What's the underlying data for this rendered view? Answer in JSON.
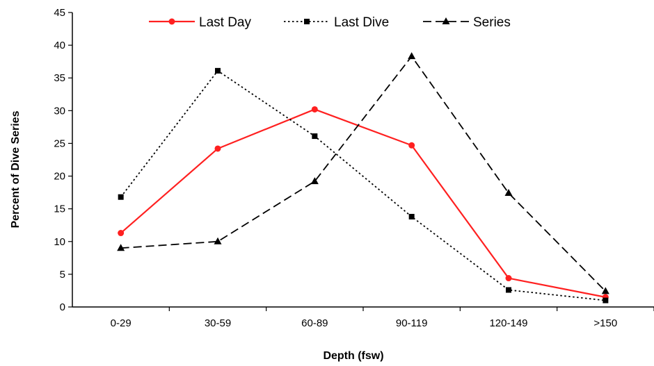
{
  "chart_data": {
    "type": "line",
    "categories": [
      "0-29",
      "30-59",
      "60-89",
      "90-119",
      "120-149",
      ">150"
    ],
    "xlabel": "Depth (fsw)",
    "ylabel": "Percent of Dive Series",
    "ylim": [
      0,
      45
    ],
    "yticks": [
      0,
      5,
      10,
      15,
      20,
      25,
      30,
      35,
      40,
      45
    ],
    "grid": false,
    "legend_position": "top",
    "series": [
      {
        "name": "Last Day",
        "values": [
          11.3,
          24.2,
          30.2,
          24.7,
          4.4,
          1.5
        ],
        "color": "#ff2020",
        "line": "solid",
        "marker": "diamond"
      },
      {
        "name": "Last Dive",
        "values": [
          16.8,
          36.1,
          26.1,
          13.8,
          2.6,
          1.0
        ],
        "color": "#000000",
        "line": "dotted",
        "marker": "square"
      },
      {
        "name": "Series",
        "values": [
          9.0,
          10.0,
          19.2,
          38.3,
          17.4,
          2.4
        ],
        "color": "#000000",
        "line": "dashed",
        "marker": "triangle"
      }
    ]
  }
}
